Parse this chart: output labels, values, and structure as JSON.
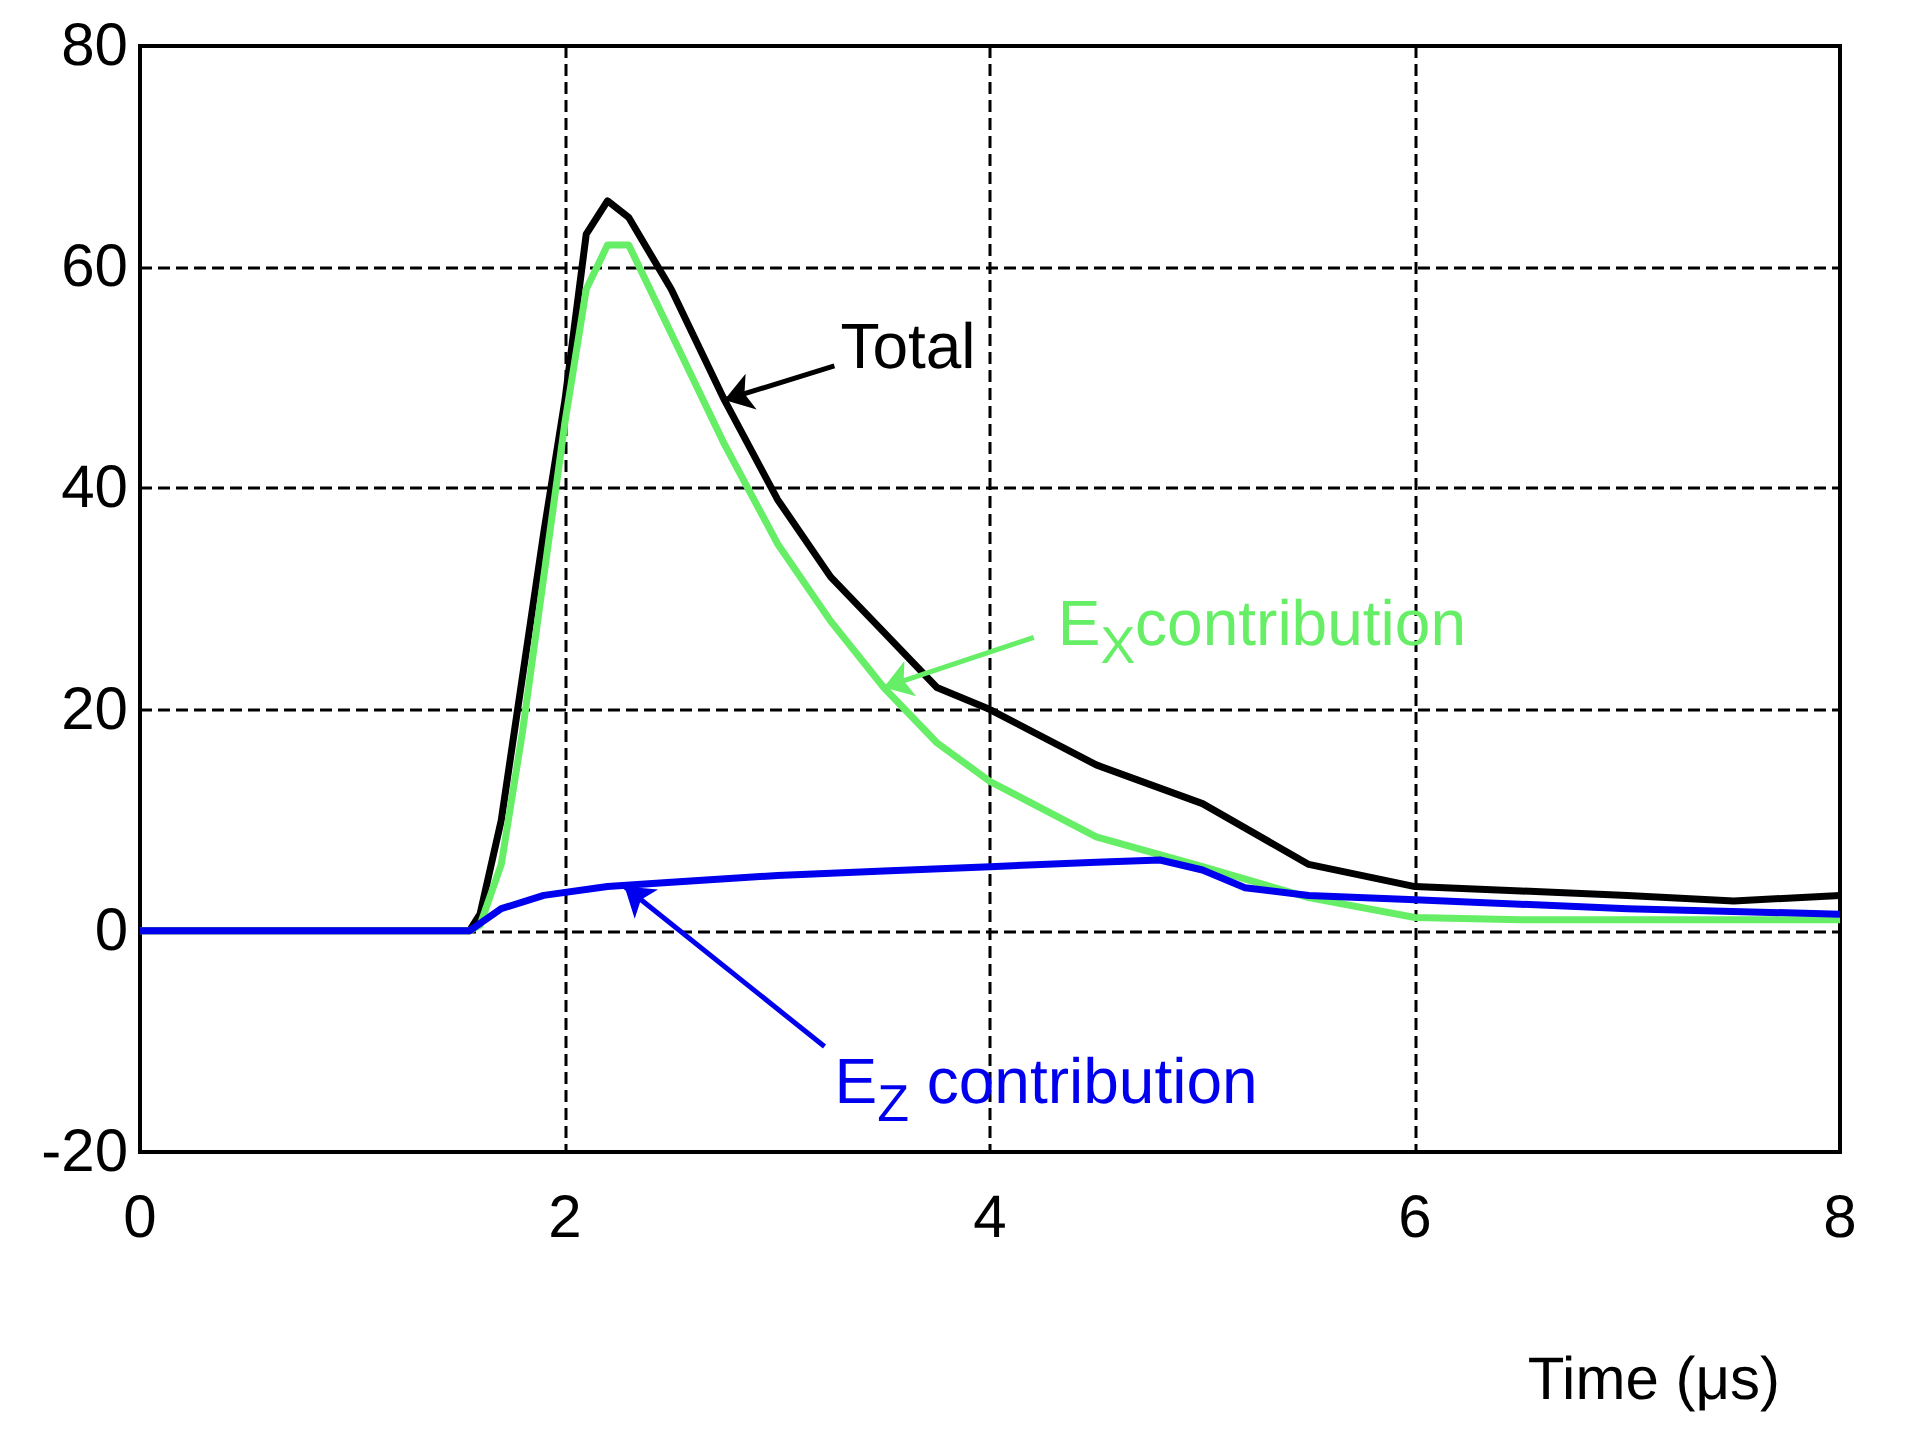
{
  "chart_data": {
    "type": "line",
    "xlabel": "Time (μs)",
    "xlim": [
      0,
      8
    ],
    "xticks": [
      0,
      2,
      4,
      6,
      8
    ],
    "ylim": [
      -20,
      80
    ],
    "yticks": [
      -20,
      0,
      20,
      40,
      60,
      80
    ],
    "grid": true,
    "marker": "none",
    "line_style": "solid",
    "series": [
      {
        "color": "#000000",
        "x": [
          0,
          1.55,
          1.6,
          1.7,
          1.8,
          1.9,
          2.0,
          2.1,
          2.2,
          2.3,
          2.5,
          2.75,
          3.0,
          3.25,
          3.5,
          3.75,
          4.0,
          4.5,
          5.0,
          5.5,
          6.0,
          6.5,
          7.0,
          7.5,
          8.0
        ],
        "values": [
          0,
          0,
          1.5,
          10,
          23,
          36,
          48,
          63,
          66,
          64.5,
          58,
          48,
          39,
          32,
          27,
          22,
          20,
          15,
          11.5,
          6,
          4,
          3.6,
          3.2,
          2.7,
          3.2
        ]
      },
      {
        "color": "#66ee66",
        "x": [
          0,
          1.55,
          1.6,
          1.7,
          1.8,
          1.9,
          2.0,
          2.1,
          2.2,
          2.3,
          2.5,
          2.75,
          3.0,
          3.25,
          3.5,
          3.75,
          4.0,
          4.5,
          5.0,
          5.5,
          6.0,
          6.5,
          8.0
        ],
        "values": [
          0,
          0,
          0.5,
          6,
          18,
          32,
          46,
          58,
          62,
          62,
          54,
          44,
          35,
          28,
          22,
          17,
          13.5,
          8.5,
          5.8,
          3,
          1.2,
          1,
          1
        ]
      },
      {
        "color": "#0000ee",
        "x": [
          0,
          1.55,
          1.7,
          1.9,
          2.2,
          2.5,
          3.0,
          3.5,
          4.0,
          4.5,
          4.8,
          5.0,
          5.2,
          5.5,
          6.0,
          7.0,
          8.0
        ],
        "values": [
          0,
          0,
          2,
          3.2,
          4,
          4.4,
          5,
          5.4,
          5.8,
          6.2,
          6.4,
          5.5,
          3.9,
          3.2,
          2.8,
          2,
          1.5
        ]
      }
    ],
    "annotations": [
      {
        "text": "Total",
        "x": 2.75,
        "y": 48
      },
      {
        "text": "E$_{X}$contribution",
        "x": 3.5,
        "y": 22
      },
      {
        "text": "E$_{Z}$ contribution",
        "x": 2.28,
        "y": 4
      }
    ]
  }
}
